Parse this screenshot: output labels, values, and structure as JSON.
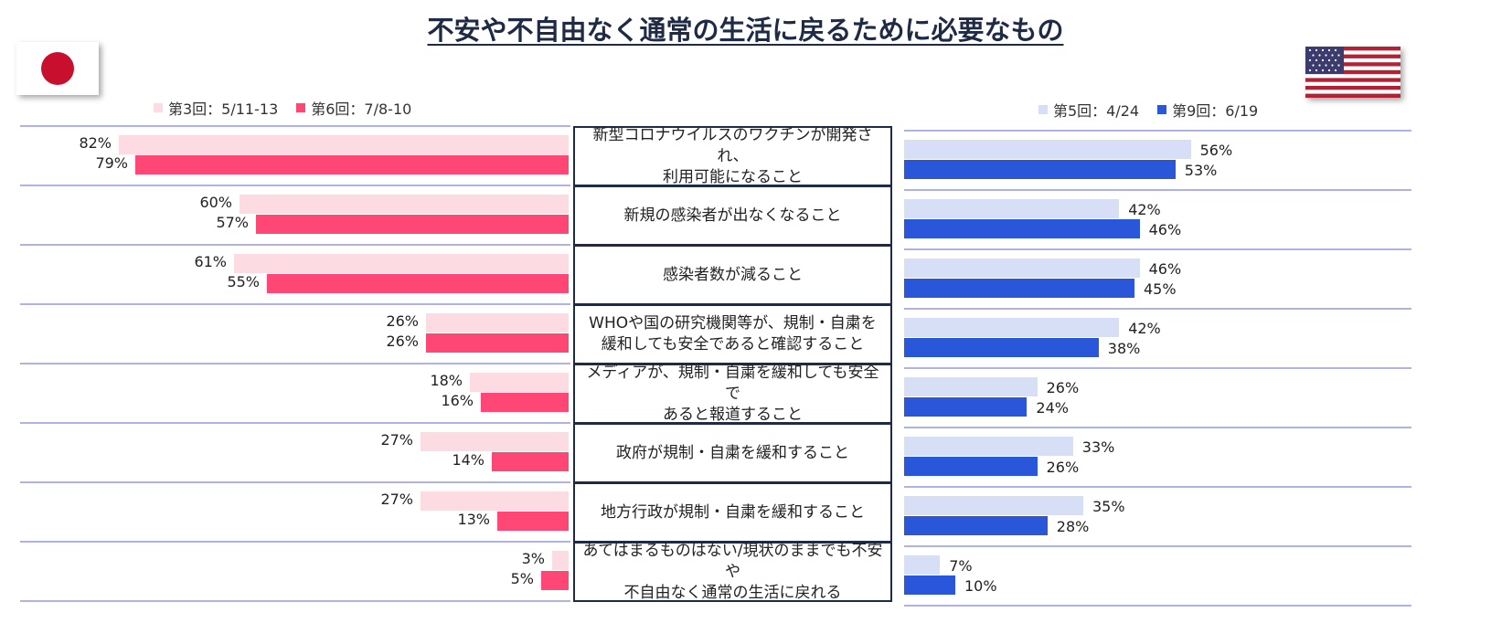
{
  "title": "不安や不自由なく通常の生活に戻るために必要なもの",
  "legend": {
    "japan": [
      {
        "label": "第3回：5/11-13",
        "color": "#fcdbe3"
      },
      {
        "label": "第6回：7/8-10",
        "color": "#ff4775"
      }
    ],
    "usa": [
      {
        "label": "第5回：4/24",
        "color": "#d7dff7"
      },
      {
        "label": "第9回：6/19",
        "color": "#2a56d9"
      }
    ]
  },
  "chart_data": {
    "type": "bar",
    "orientation": "horizontal",
    "title": "不安や不自由なく通常の生活に戻るために必要なもの",
    "categories": [
      "新型コロナウイルスのワクチンが開発され、利用可能になること",
      "新規の感染者が出なくなること",
      "感染者数が減ること",
      "WHOや国の研究機関等が、規制・自粛を緩和しても安全であると確認すること",
      "メディアが、規制・自粛を緩和しても安全であると報道すること",
      "政府が規制・自粛を緩和すること",
      "地方行政が規制・自粛を緩和すること",
      "あてはまるものはない/現状のままでも不安や不自由なく通常の生活に戻れる"
    ],
    "japan": {
      "series": [
        {
          "name": "第3回：5/11-13",
          "values": [
            82,
            60,
            61,
            26,
            18,
            27,
            27,
            3
          ]
        },
        {
          "name": "第6回：7/8-10",
          "values": [
            79,
            57,
            55,
            26,
            16,
            14,
            13,
            5
          ]
        }
      ]
    },
    "usa": {
      "series": [
        {
          "name": "第5回：4/24",
          "values": [
            56,
            42,
            46,
            42,
            26,
            33,
            35,
            7
          ]
        },
        {
          "name": "第9回：6/19",
          "values": [
            53,
            46,
            45,
            38,
            24,
            26,
            28,
            10
          ]
        }
      ]
    },
    "unit": "%"
  },
  "category_lines": [
    [
      "新型コロナウイルスのワクチンが開発され、",
      "利用可能になること"
    ],
    [
      "新規の感染者が出なくなること"
    ],
    [
      "感染者数が減ること"
    ],
    [
      "WHOや国の研究機関等が、規制・自粛を",
      "緩和しても安全であると確認すること"
    ],
    [
      "メディアが、規制・自粛を緩和しても安全で",
      "あると報道すること"
    ],
    [
      "政府が規制・自粛を緩和すること"
    ],
    [
      "地方行政が規制・自粛を緩和すること"
    ],
    [
      "あてはまるものはない/現状のままでも不安や",
      "不自由なく通常の生活に戻れる"
    ]
  ]
}
